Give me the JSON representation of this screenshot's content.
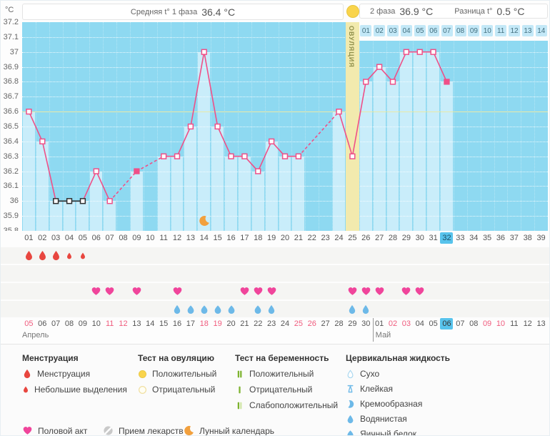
{
  "header": {
    "unit": "°C",
    "phase1": {
      "label": "Средняя t° 1 фаза",
      "value": "36.4 °C"
    },
    "phase2": {
      "label": "2 фаза",
      "value": "36.9 °C"
    },
    "diff": {
      "label": "Разница t°",
      "value": "0.5 °C"
    }
  },
  "chart_data": {
    "type": "line",
    "ylabel": "°C",
    "ylim": [
      35.8,
      37.2
    ],
    "yticks": [
      "37.2",
      "37.1",
      "37",
      "36.9",
      "36.8",
      "36.7",
      "36.6",
      "36.5",
      "36.4",
      "36.3",
      "36.2",
      "36.1",
      "36",
      "35.9",
      "35.8"
    ],
    "coverline": 36.6,
    "x_days": 39,
    "day_labels": [
      "01",
      "02",
      "03",
      "04",
      "05",
      "06",
      "07",
      "08",
      "09",
      "10",
      "11",
      "12",
      "13",
      "14",
      "15",
      "16",
      "17",
      "18",
      "19",
      "20",
      "21",
      "22",
      "23",
      "24",
      "25",
      "26",
      "27",
      "28",
      "29",
      "30",
      "31",
      "32",
      "33",
      "34",
      "35",
      "36",
      "37",
      "38",
      "39"
    ],
    "today_day": 32,
    "ovulation": {
      "day": 25,
      "label": "ОВУЛЯЦИЯ"
    },
    "phase2_start_day": 26,
    "phase2_labels": [
      "01",
      "02",
      "03",
      "04",
      "05",
      "06",
      "07",
      "08",
      "09",
      "10",
      "11",
      "12",
      "13",
      "14"
    ],
    "temps": [
      36.6,
      36.4,
      36.0,
      36.0,
      36.0,
      36.2,
      36.0,
      null,
      36.2,
      null,
      36.3,
      36.3,
      36.5,
      37.0,
      36.5,
      36.3,
      36.3,
      36.2,
      36.4,
      36.3,
      36.3,
      null,
      null,
      36.6,
      36.3,
      36.8,
      36.9,
      36.8,
      37.0,
      37.0,
      37.0,
      36.8,
      null,
      null,
      null,
      null,
      null,
      null,
      null
    ],
    "black_marker_days": [
      3,
      4,
      5
    ],
    "filled_marker_days": [
      9,
      32
    ],
    "moon_day": 14,
    "menstruation_heavy_days": [
      1,
      2,
      3
    ],
    "menstruation_light_days": [
      4,
      5
    ],
    "intercourse_days": [
      6,
      7,
      9,
      12,
      17,
      18,
      19,
      25,
      26,
      27,
      29,
      30
    ],
    "cervical_watery_days": [
      12,
      19,
      25,
      26
    ],
    "cervical_eggwhite_days": [
      13,
      14,
      15,
      16,
      18
    ],
    "dates": [
      "05",
      "06",
      "07",
      "08",
      "09",
      "10",
      "11",
      "12",
      "13",
      "14",
      "15",
      "16",
      "17",
      "18",
      "19",
      "20",
      "21",
      "22",
      "23",
      "24",
      "25",
      "26",
      "27",
      "28",
      "29",
      "30",
      "01",
      "02",
      "03",
      "04",
      "05",
      "06",
      "07",
      "08",
      "09",
      "10",
      "11",
      "12",
      "13"
    ],
    "weekend_days": [
      1,
      7,
      8,
      14,
      15,
      21,
      22,
      28,
      29,
      35,
      36
    ],
    "months": [
      {
        "label": "Апрель",
        "start_day": 1
      },
      {
        "label": "Май",
        "start_day": 27
      }
    ]
  },
  "legend": {
    "menstruation": {
      "title": "Менструация",
      "items": [
        {
          "icon": "drop-large",
          "label": "Менструация"
        },
        {
          "icon": "drop-small",
          "label": "Небольшие выделения"
        }
      ]
    },
    "ovulation_test": {
      "title": "Тест на овуляцию",
      "items": [
        {
          "icon": "circle-filled",
          "label": "Положительный"
        },
        {
          "icon": "circle-outline",
          "label": "Отрицательный"
        }
      ]
    },
    "pregnancy_test": {
      "title": "Тест на беременность",
      "items": [
        {
          "icon": "bars-two",
          "label": "Положительный"
        },
        {
          "icon": "bar-one",
          "label": "Отрицательный"
        },
        {
          "icon": "bars-weak",
          "label": "Слабоположительный"
        }
      ]
    },
    "cervical": {
      "title": "Цервикальная жидкость",
      "items": [
        {
          "icon": "drop-outline",
          "label": "Сухо"
        },
        {
          "icon": "sticky",
          "label": "Клейкая"
        },
        {
          "icon": "creamy",
          "label": "Кремообразная"
        },
        {
          "icon": "watery",
          "label": "Водянистая"
        },
        {
          "icon": "eggwhite",
          "label": "Яичный белок"
        }
      ]
    },
    "extra": [
      {
        "icon": "heart",
        "label": "Половой акт"
      },
      {
        "icon": "pill",
        "label": "Прием лекарств"
      },
      {
        "icon": "moon",
        "label": "Лунный календарь"
      }
    ]
  },
  "colors": {
    "line": "#ef5088",
    "black": "#2e2e2e",
    "bar": "#c9edfa",
    "plot_bg": "#8ed9f1",
    "ovu_col": "#f2eaae",
    "coverline": "#e9e9a8",
    "menstruation": "#e8463f",
    "heart": "#f0459b",
    "fluid": "#6db9e8",
    "yellow": "#f9d44c",
    "yellow_border": "#e8c53e",
    "green": "#7db32f",
    "green_pale": "#cfe5a5",
    "pill": "#c9c9c9",
    "moon": "#f2a03d",
    "today_bg": "#57c3ec",
    "weekend": "#f05c7e"
  }
}
